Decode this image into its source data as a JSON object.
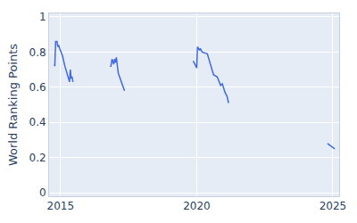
{
  "chart_data": {
    "type": "line",
    "y_label": "World Ranking Points",
    "x": [
      2014.77,
      2014.79,
      2014.82,
      2014.87,
      2014.9,
      2014.93,
      2014.97,
      2015.07,
      2015.16,
      2015.26,
      2015.33,
      2015.36,
      2015.39,
      2015.42,
      2015.46,
      null,
      2016.82,
      2016.85,
      2016.89,
      2016.92,
      2016.95,
      2016.99,
      2017.02,
      2017.05,
      2017.12,
      2017.21,
      2017.28,
      2017.35,
      null,
      2019.87,
      2020.0,
      2020.03,
      2020.1,
      2020.13,
      2020.2,
      2020.39,
      2020.52,
      2020.62,
      2020.75,
      2020.88,
      2020.94,
      2021.04,
      2021.11,
      2021.17,
      null,
      2024.8,
      2024.9,
      2025.07
    ],
    "series": [
      {
        "color": "#4169e1",
        "values": [
          0.73,
          0.72,
          0.86,
          0.86,
          0.83,
          0.84,
          0.82,
          0.78,
          0.72,
          0.67,
          0.63,
          0.7,
          0.65,
          0.66,
          0.63,
          null,
          0.72,
          0.72,
          0.76,
          0.75,
          0.73,
          0.76,
          0.74,
          0.77,
          0.68,
          0.64,
          0.61,
          0.58,
          null,
          0.75,
          0.71,
          0.83,
          0.81,
          0.82,
          0.8,
          0.79,
          0.72,
          0.67,
          0.66,
          0.61,
          0.62,
          0.57,
          0.55,
          0.51,
          null,
          0.28,
          0.27,
          0.25
        ]
      }
    ],
    "xlim": [
      2014.58,
      2025.23
    ],
    "xticks": [
      2015,
      2020,
      2025
    ],
    "ylim": [
      -0.02,
      1.02
    ],
    "yticks": [
      0,
      0.2,
      0.4,
      0.6,
      0.8,
      1
    ],
    "grid": true
  }
}
